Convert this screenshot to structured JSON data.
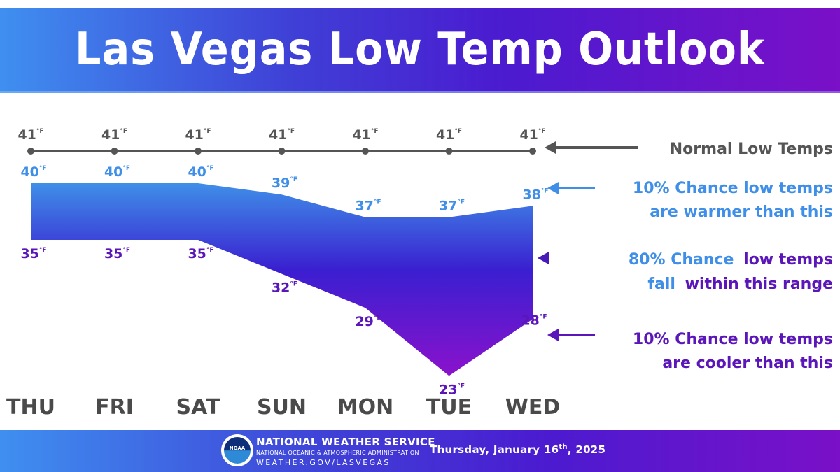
{
  "title": "Las Vegas Low Temp Outlook",
  "chart_data": {
    "type": "area",
    "categories": [
      "THU",
      "FRI",
      "SAT",
      "SUN",
      "MON",
      "TUE",
      "WED"
    ],
    "unit": "°F",
    "series": [
      {
        "values": [
          41,
          41,
          41,
          41,
          41,
          41,
          41
        ]
      },
      {
        "values": [
          40,
          40,
          40,
          39,
          37,
          37,
          38
        ]
      },
      {
        "values": [
          35,
          35,
          35,
          32,
          29,
          23,
          28
        ]
      }
    ],
    "annotations": [
      "Normal Low Temps",
      "10% Chance low temps are warmer than this",
      "80% Chance low temps fall within this range",
      "10% Chance low temps are cooler than this"
    ],
    "colors": {
      "normal": "#555555",
      "warm": "#3f8fe8",
      "cool": "#5a16b8",
      "band_top": "#3f8fe8",
      "band_mid": "#3a1fd0",
      "band_bottom": "#8a12cc"
    }
  },
  "legend": {
    "normal": "Normal Low Temps",
    "warm_line1": "10% Chance low temps",
    "warm_line2": "are warmer than this",
    "range_word1": "80% Chance",
    "range_word2": "low temps",
    "range_word3": "fall",
    "range_word4": "within this range",
    "cool_line1": "10% Chance low temps",
    "cool_line2": "are cooler than this"
  },
  "footer": {
    "logo_text": "NOAA",
    "agency": "NATIONAL WEATHER SERVICE",
    "parent": "NATIONAL OCEANIC & ATMOSPHERIC ADMINISTRATION",
    "url": "WEATHER.GOV/LASVEGAS",
    "date_prefix": "Thursday,  January 16",
    "date_sup": "th",
    "date_suffix": ", 2025"
  }
}
